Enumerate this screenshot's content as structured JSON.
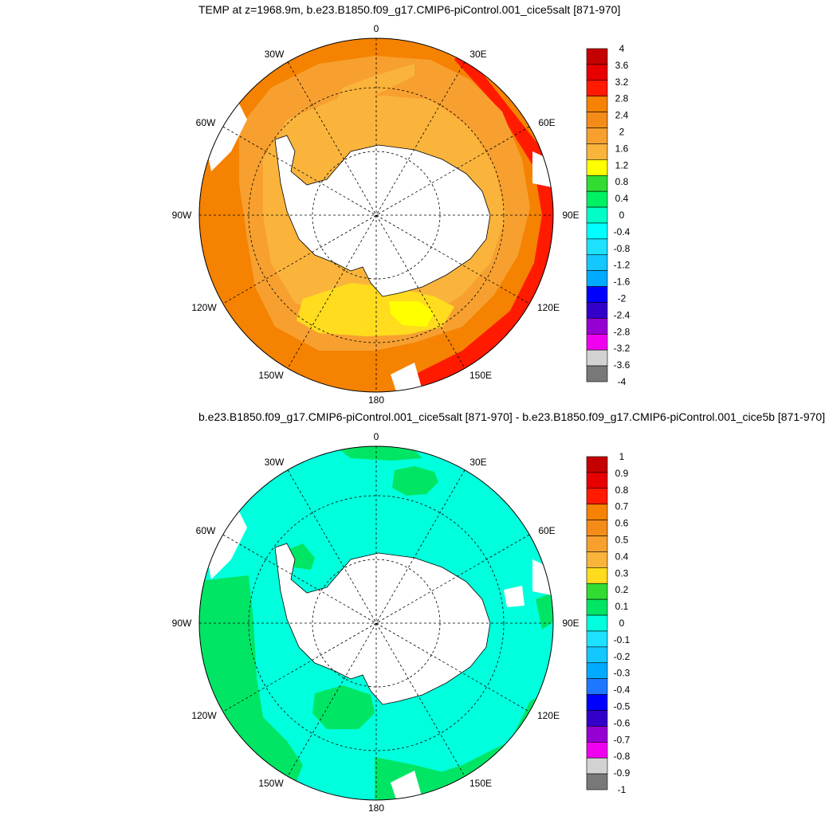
{
  "top_panel": {
    "title": "TEMP at z=1968.9m, b.e23.B1850.f09_g17.CMIP6-piControl.001_cice5salt [871-970]",
    "legend": {
      "labels": [
        "4",
        "3.6",
        "3.2",
        "2.8",
        "2.4",
        "2",
        "1.6",
        "1.2",
        "0.8",
        "0.4",
        "0",
        "-0.4",
        "-0.8",
        "-1.2",
        "-1.6",
        "-2",
        "-2.4",
        "-2.8",
        "-3.2",
        "-3.6",
        "-4"
      ],
      "colors": [
        "#c40000",
        "#e60000",
        "#ff1a00",
        "#f58200",
        "#f58c1a",
        "#f7a030",
        "#fab43c",
        "#ffff00",
        "#32dc32",
        "#00f064",
        "#00ffc8",
        "#00ffff",
        "#1ee1ff",
        "#14c8ff",
        "#00aaff",
        "#0000ff",
        "#3200c8",
        "#9600d2",
        "#f000f0",
        "#d2d2d2",
        "#787878"
      ]
    }
  },
  "bottom_panel": {
    "title": "b.e23.B1850.f09_g17.CMIP6-piControl.001_cice5salt [871-970] - b.e23.B1850.f09_g17.CMIP6-piControl.001_cice5b [871-970]",
    "legend": {
      "labels": [
        "1",
        "0.9",
        "0.8",
        "0.7",
        "0.6",
        "0.5",
        "0.4",
        "0.3",
        "0.2",
        "0.1",
        "0",
        "-0.1",
        "-0.2",
        "-0.3",
        "-0.4",
        "-0.5",
        "-0.6",
        "-0.7",
        "-0.8",
        "-0.9",
        "-1"
      ],
      "colors": [
        "#c40000",
        "#e60000",
        "#ff1a00",
        "#f58200",
        "#f58c1a",
        "#f7a030",
        "#fab43c",
        "#ffdc1e",
        "#32dc32",
        "#00e664",
        "#00ffdc",
        "#1ee1ff",
        "#14c8ff",
        "#00aaff",
        "#1e78ff",
        "#0000ff",
        "#3200c8",
        "#9600d2",
        "#f000f0",
        "#d2d2d2",
        "#787878"
      ]
    }
  },
  "map_labels": {
    "n0": "0",
    "n30w": "30W",
    "n30e": "30E",
    "n60w": "60W",
    "n60e": "60E",
    "n90w": "90W",
    "n90e": "90E",
    "n120w": "120W",
    "n120e": "120E",
    "n150w": "150W",
    "n150e": "150E",
    "n180": "180"
  },
  "colors": {
    "top_outer": "#f58200",
    "top_mid": "#f7a030",
    "top_warm": "#fab43c",
    "top_yellow": "#ffdc1e",
    "top_bright_yellow": "#ffff00",
    "top_red": "#ff1a00",
    "bottom_cyan": "#00ffdc",
    "bottom_green": "#00e664",
    "land": "#ffffff"
  }
}
